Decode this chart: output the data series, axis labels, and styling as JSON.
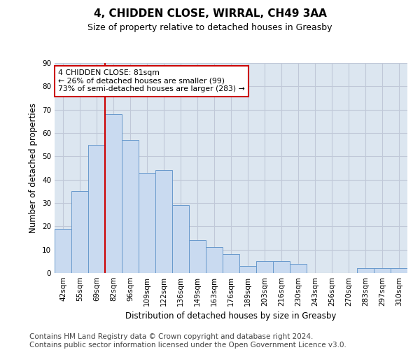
{
  "title1": "4, CHIDDEN CLOSE, WIRRAL, CH49 3AA",
  "title2": "Size of property relative to detached houses in Greasby",
  "xlabel": "Distribution of detached houses by size in Greasby",
  "ylabel": "Number of detached properties",
  "categories": [
    "42sqm",
    "55sqm",
    "69sqm",
    "82sqm",
    "96sqm",
    "109sqm",
    "122sqm",
    "136sqm",
    "149sqm",
    "163sqm",
    "176sqm",
    "189sqm",
    "203sqm",
    "216sqm",
    "230sqm",
    "243sqm",
    "256sqm",
    "270sqm",
    "283sqm",
    "297sqm",
    "310sqm"
  ],
  "values": [
    19,
    35,
    55,
    68,
    57,
    43,
    44,
    29,
    14,
    11,
    8,
    3,
    5,
    5,
    4,
    0,
    0,
    0,
    2,
    2,
    2
  ],
  "bar_color": "#c9daf0",
  "bar_edge_color": "#6899cc",
  "vline_x": 2.5,
  "vline_color": "#cc0000",
  "annotation_text": "4 CHIDDEN CLOSE: 81sqm\n← 26% of detached houses are smaller (99)\n73% of semi-detached houses are larger (283) →",
  "annotation_box_color": "#ffffff",
  "annotation_box_edge": "#cc0000",
  "ylim": [
    0,
    90
  ],
  "yticks": [
    0,
    10,
    20,
    30,
    40,
    50,
    60,
    70,
    80,
    90
  ],
  "grid_color": "#c0c8d8",
  "background_color": "#dce6f0",
  "footer": "Contains HM Land Registry data © Crown copyright and database right 2024.\nContains public sector information licensed under the Open Government Licence v3.0.",
  "footer_fontsize": 7.5,
  "title_fontsize": 11,
  "subtitle_fontsize": 9,
  "ylabel_fontsize": 8.5,
  "xlabel_fontsize": 8.5,
  "tick_fontsize": 7.5
}
